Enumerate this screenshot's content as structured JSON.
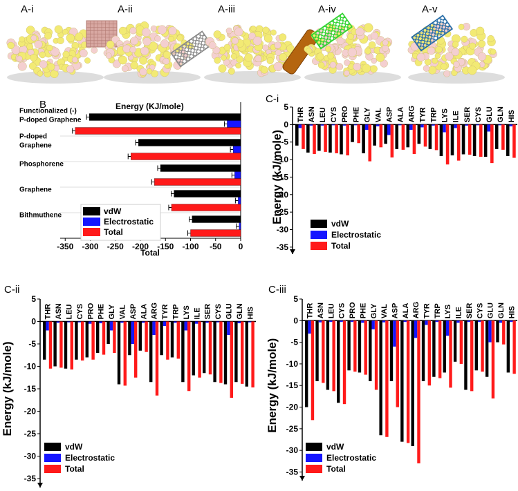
{
  "top_panels": [
    {
      "label": "A-i",
      "sheet_color": "#b27a72",
      "sheet_type": "grid"
    },
    {
      "label": "A-ii",
      "sheet_color": "#8a8a8a",
      "sheet_type": "hex"
    },
    {
      "label": "A-iii",
      "sheet_color": "#b5650f",
      "sheet_type": "rod"
    },
    {
      "label": "A-iv",
      "sheet_color": "#2fd32f",
      "sheet_type": "hex"
    },
    {
      "label": "A-v",
      "sheet_color": "#2a6fa8",
      "sheet_type": "hex"
    }
  ],
  "colors": {
    "vdw": "#000000",
    "electrostatic": "#1515ff",
    "total": "#ff1a1a",
    "yellow": "#f2ea74",
    "pink": "#f4cfd0"
  },
  "chart_data": [
    {
      "id": "B",
      "label": "B",
      "type": "bar",
      "orientation": "horizontal",
      "title": "Energy (KJ/mole)",
      "xlabel": "Total",
      "xlim": [
        -360,
        0
      ],
      "xticks": [
        -350,
        -300,
        -250,
        -200,
        -150,
        -100,
        -50,
        0
      ],
      "categories": [
        "Functionalized (-) P-doped Graphene",
        "P-doped Graphene",
        "Phosphorene",
        "Graphene",
        "Bithmuthene"
      ],
      "category_lines": [
        [
          "Functionalized (-)",
          "P-doped Graphene"
        ],
        [
          "P-doped",
          "Graphene"
        ],
        [
          "Phosphorene"
        ],
        [
          "Graphene"
        ],
        [
          "Bithmuthene"
        ]
      ],
      "series": [
        {
          "name": "vdW",
          "values": [
            -302,
            -204,
            -160,
            -133,
            -97
          ]
        },
        {
          "name": "Electrostatic",
          "values": [
            -27,
            -15,
            -12,
            -5,
            -3
          ]
        },
        {
          "name": "Total",
          "values": [
            -330,
            -219,
            -172,
            -138,
            -100
          ]
        }
      ],
      "legend": [
        "vdW",
        "Electrostatic",
        "Total"
      ],
      "legend_position": "bottom-left"
    },
    {
      "id": "C-i",
      "label": "C-i",
      "type": "bar",
      "ylabel": "Energy (kJ/mole)",
      "ylim": [
        -37,
        5
      ],
      "yticks": [
        5,
        0,
        -5,
        -10,
        -15,
        -20,
        -25,
        -30,
        -35
      ],
      "categories": [
        "THR",
        "ASN",
        "LEU",
        "CYS",
        "PRO",
        "PHE",
        "GLY",
        "VAL",
        "ASP",
        "ALA",
        "ARG",
        "TYR",
        "TRP",
        "LYS",
        "ILE",
        "SER",
        "CYS",
        "GLU",
        "GLN",
        "HIS"
      ],
      "series": [
        {
          "name": "vdW",
          "values": [
            -6.0,
            -8.0,
            -7.5,
            -8.0,
            -8.5,
            -5.0,
            -8.2,
            -6.0,
            -5.5,
            -7.0,
            -6.5,
            -5.5,
            -7.0,
            -9.0,
            -8.8,
            -8.5,
            -9.0,
            -9.2,
            -7.0,
            -9.0
          ]
        },
        {
          "name": "Electrostatic",
          "values": [
            -1.0,
            -0.3,
            -0.3,
            -0.2,
            -0.3,
            -0.2,
            -1.5,
            -0.5,
            -3.0,
            -0.2,
            -1.5,
            -0.8,
            -0.3,
            -2.2,
            -1.0,
            -0.3,
            -0.2,
            -2.0,
            -0.2,
            -0.5
          ]
        },
        {
          "name": "Total",
          "values": [
            -7.0,
            -8.4,
            -7.8,
            -8.2,
            -8.8,
            -5.3,
            -10.5,
            -6.5,
            -9.4,
            -7.2,
            -8.4,
            -6.3,
            -7.3,
            -11.4,
            -10.3,
            -8.6,
            -9.2,
            -11.0,
            -7.2,
            -9.5
          ]
        }
      ],
      "legend": [
        "vdW",
        "Electrostatic",
        "Total"
      ],
      "legend_position": "bottom-left"
    },
    {
      "id": "C-ii",
      "label": "C-ii",
      "type": "bar",
      "ylabel": "Energy (kJ/mole)",
      "ylim": [
        -37,
        5
      ],
      "yticks": [
        5,
        0,
        -5,
        -10,
        -15,
        -20,
        -25,
        -30,
        -35
      ],
      "categories": [
        "THR",
        "ASN",
        "LEU",
        "CYS",
        "PRO",
        "PHE",
        "GLY",
        "VAL",
        "ASP",
        "ALA",
        "ARG",
        "TYR",
        "TRP",
        "LYS",
        "ILE",
        "SER",
        "CYS",
        "GLU",
        "GLN",
        "HIS"
      ],
      "series": [
        {
          "name": "vdW",
          "values": [
            -8.5,
            -10.0,
            -10.5,
            -8.5,
            -8.0,
            -7.0,
            -5.0,
            -14.0,
            -7.5,
            -6.5,
            -13.5,
            -7.5,
            -8.0,
            -13.5,
            -12.0,
            -11.5,
            -13.5,
            -14.0,
            -13.5,
            -14.5
          ]
        },
        {
          "name": "Electrostatic",
          "values": [
            -2.0,
            -0.3,
            -0.2,
            -0.2,
            -0.5,
            -0.4,
            -2.0,
            -0.3,
            -5.0,
            -0.3,
            -3.0,
            -1.0,
            -0.3,
            -2.0,
            -0.5,
            -0.3,
            -0.2,
            -3.0,
            -0.4,
            -0.2
          ]
        },
        {
          "name": "Total",
          "values": [
            -10.5,
            -10.3,
            -10.7,
            -8.7,
            -8.5,
            -7.4,
            -7.0,
            -14.3,
            -12.5,
            -6.8,
            -16.5,
            -8.5,
            -8.3,
            -15.5,
            -12.5,
            -11.8,
            -13.7,
            -17.0,
            -13.9,
            -14.7
          ]
        }
      ],
      "legend": [
        "vdW",
        "Electrostatic",
        "Total"
      ],
      "legend_position": "bottom-left"
    },
    {
      "id": "C-iii",
      "label": "C-iii",
      "type": "bar",
      "ylabel": "Energy (kJ/mole)",
      "ylim": [
        -37,
        5
      ],
      "yticks": [
        5,
        0,
        -5,
        -10,
        -15,
        -20,
        -25,
        -30,
        -35
      ],
      "categories": [
        "THR",
        "ASN",
        "LEU",
        "CYS",
        "PRO",
        "PHE",
        "GLY",
        "VAL",
        "ASP",
        "ALA",
        "ARG",
        "TYR",
        "TRP",
        "LYS",
        "ILE",
        "SER",
        "CYS",
        "GLU",
        "GLN",
        "HIS"
      ],
      "series": [
        {
          "name": "vdW",
          "values": [
            -20.0,
            -14.0,
            -16.0,
            -19.0,
            -11.5,
            -12.0,
            -14.0,
            -26.5,
            -14.0,
            -28.0,
            -29.0,
            -14.0,
            -13.0,
            -12.0,
            -9.5,
            -16.0,
            -11.5,
            -13.0,
            -5.0,
            -12.0
          ]
        },
        {
          "name": "Electrostatic",
          "values": [
            -3.0,
            -0.4,
            -0.3,
            -0.3,
            -0.3,
            -0.5,
            -2.0,
            -0.4,
            -6.0,
            -0.3,
            -4.0,
            -1.0,
            -0.3,
            -3.5,
            -0.5,
            -0.3,
            -0.3,
            -5.0,
            -0.5,
            -0.3
          ]
        },
        {
          "name": "Total",
          "values": [
            -23.0,
            -14.4,
            -16.3,
            -19.3,
            -11.8,
            -12.5,
            -16.0,
            -26.9,
            -20.0,
            -28.3,
            -33.0,
            -15.0,
            -13.3,
            -15.5,
            -10.0,
            -16.3,
            -11.8,
            -18.0,
            -5.5,
            -12.3
          ]
        }
      ],
      "legend": [
        "vdW",
        "Electrostatic",
        "Total"
      ],
      "legend_position": "bottom-left"
    }
  ]
}
